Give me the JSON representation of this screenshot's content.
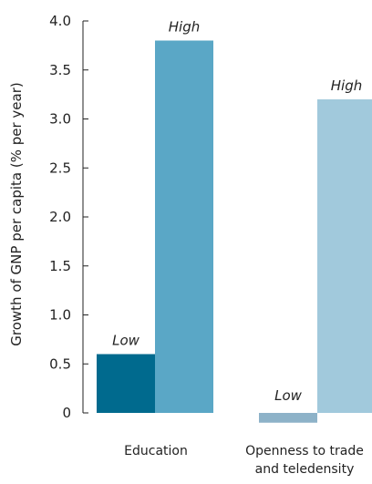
{
  "chart_data": {
    "type": "bar",
    "title": "",
    "ylabel": "Growth of GNP per capita (% per year)",
    "xlabel": "",
    "ylim": [
      -0.1,
      4.0
    ],
    "yticks": [
      "0",
      "0.5",
      "1.0",
      "1.5",
      "2.0",
      "2.5",
      "3.0",
      "3.5",
      "4.0"
    ],
    "ytick_values": [
      0,
      0.5,
      1.0,
      1.5,
      2.0,
      2.5,
      3.0,
      3.5,
      4.0
    ],
    "grid": false,
    "categories": [
      {
        "label_lines": [
          "Education"
        ],
        "bars": [
          {
            "label": "Low",
            "value": 0.6,
            "color": "#006a8e"
          },
          {
            "label": "High",
            "value": 3.8,
            "color": "#5aa7c6"
          }
        ]
      },
      {
        "label_lines": [
          "Openness to trade",
          "and teledensity"
        ],
        "bars": [
          {
            "label": "Low",
            "value": -0.1,
            "color": "#8db2c8"
          },
          {
            "label": "High",
            "value": 3.2,
            "color": "#a1c9dc"
          }
        ]
      }
    ]
  }
}
